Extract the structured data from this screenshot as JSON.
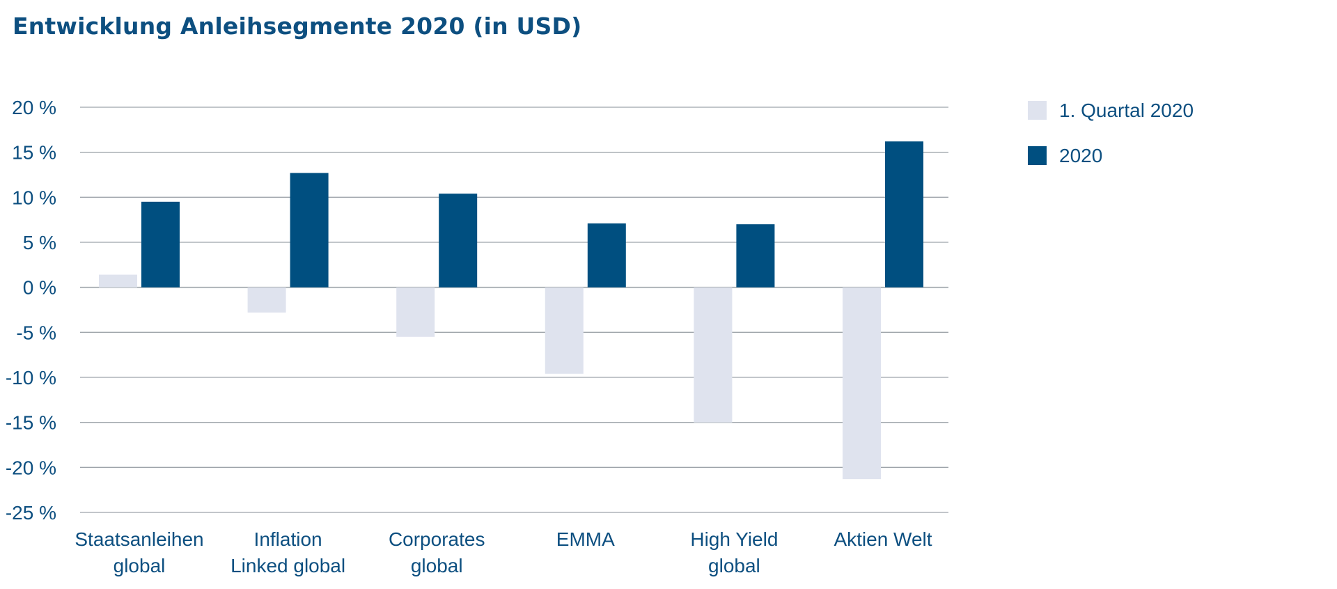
{
  "chart_data": {
    "type": "bar",
    "title": "Entwicklung Anleihsegmente 2020 (in USD)",
    "xlabel": "",
    "ylabel": "",
    "ylim": [
      -25,
      20
    ],
    "yticks": [
      20,
      15,
      10,
      5,
      0,
      -5,
      -10,
      -15,
      -20,
      -25
    ],
    "ytick_labels": [
      "20 %",
      "15 %",
      "10 %",
      "5 %",
      "0 %",
      "-5 %",
      "-10 %",
      "-15 %",
      "-20 %",
      "-25 %"
    ],
    "grid": true,
    "legend_position": "top-right",
    "categories": [
      [
        "Staatsanleihen",
        "global"
      ],
      [
        "Inflation",
        "Linked global"
      ],
      [
        "Corporates",
        "global"
      ],
      [
        "EMMA"
      ],
      [
        "High Yield",
        "global"
      ],
      [
        "Aktien Welt"
      ]
    ],
    "series": [
      {
        "name": "1. Quartal 2020",
        "color": "#dfe3ee",
        "values": [
          1.4,
          -2.8,
          -5.5,
          -9.6,
          -15.0,
          -21.3
        ]
      },
      {
        "name": "2020",
        "color": "#004f80",
        "values": [
          9.5,
          12.7,
          10.4,
          7.1,
          7.0,
          16.2
        ]
      }
    ]
  },
  "colors": {
    "title": "#0d4f80",
    "text": "#0d4f80",
    "grid": "#9ea4aa"
  }
}
